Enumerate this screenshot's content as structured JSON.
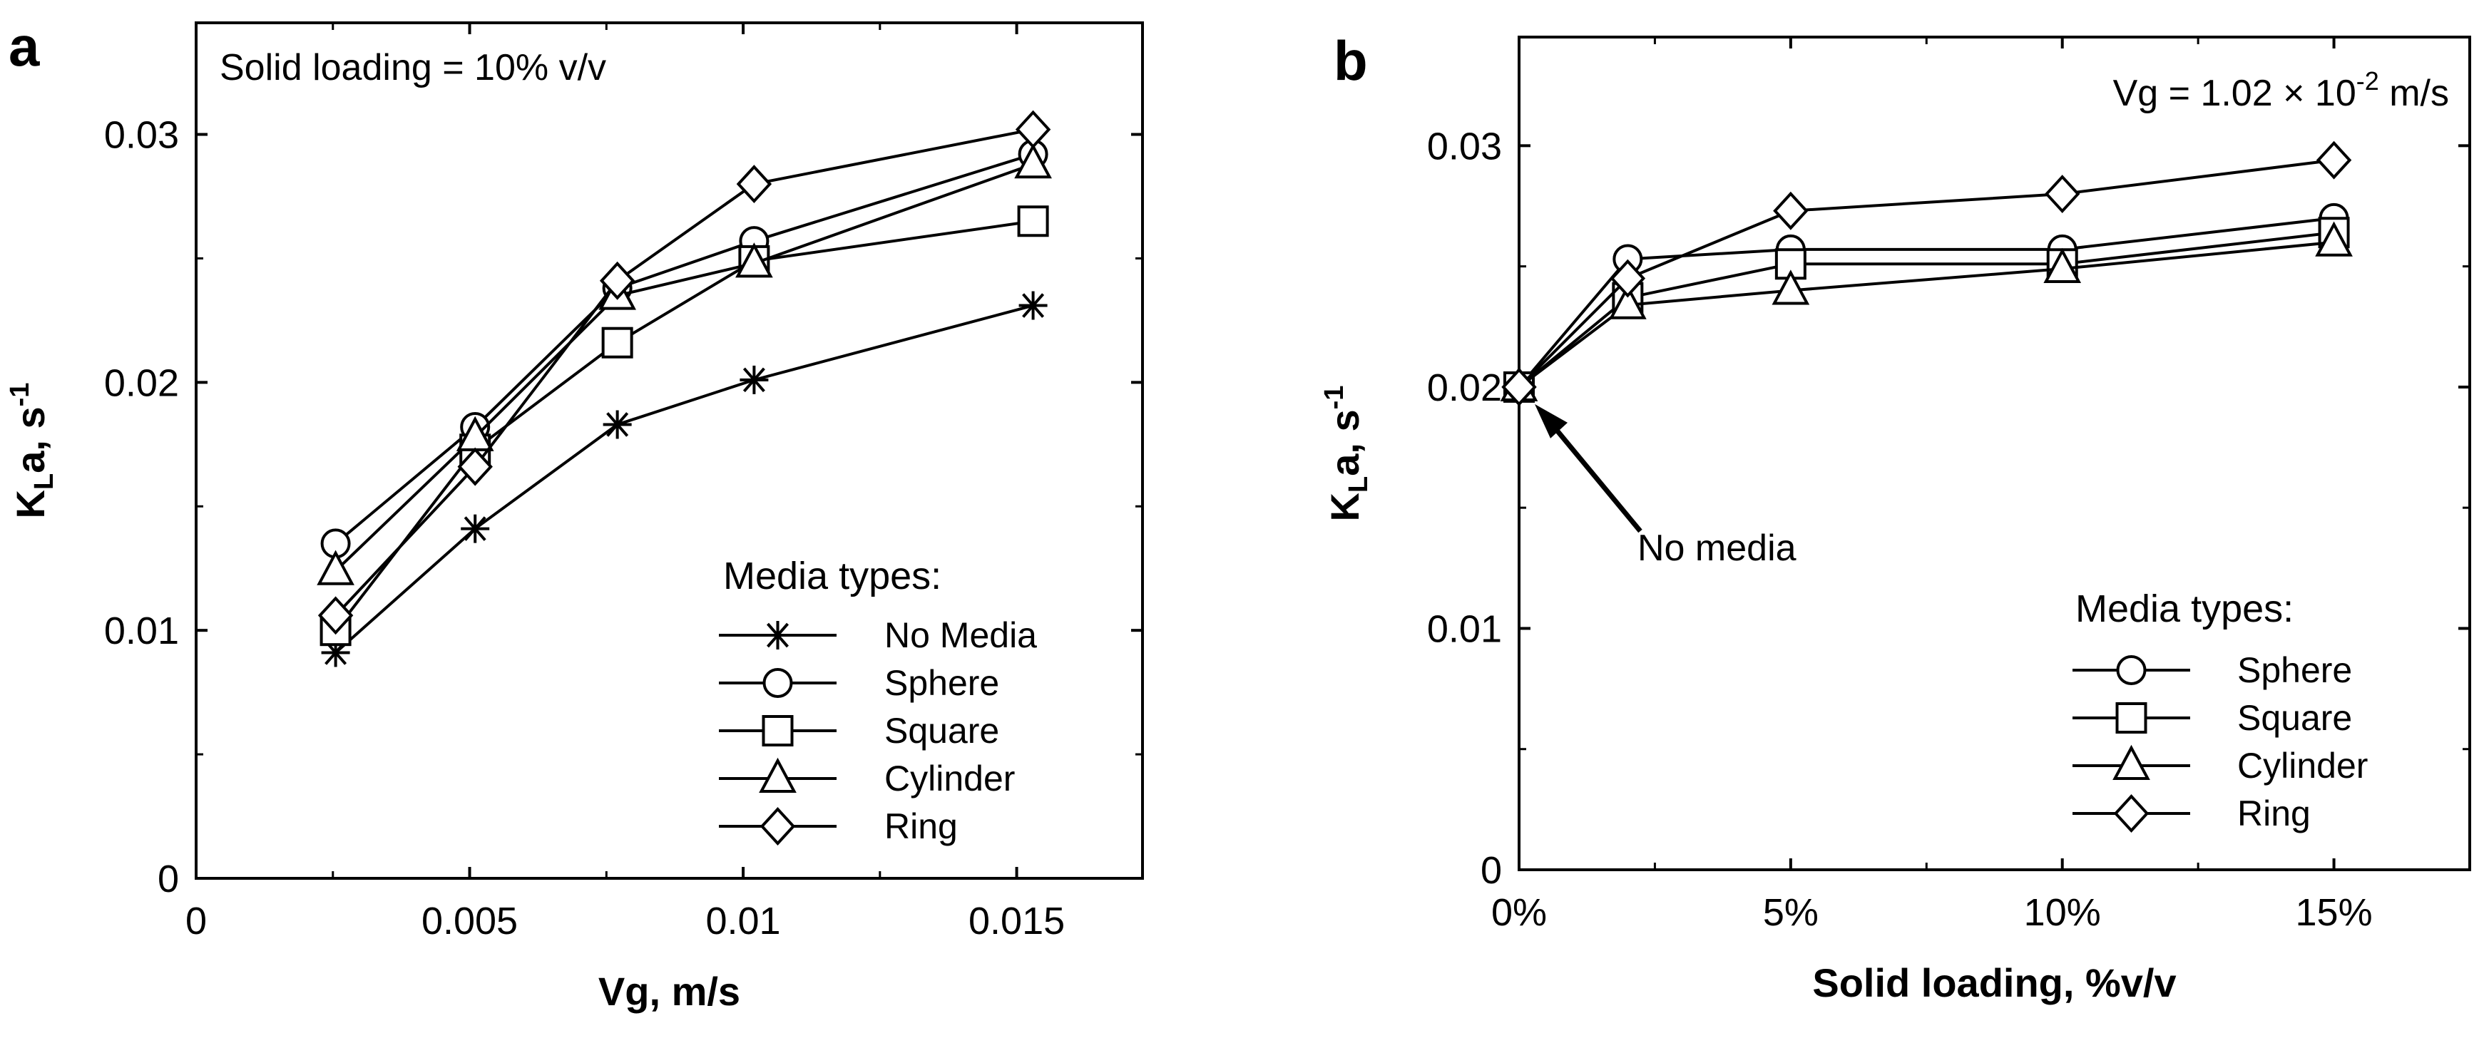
{
  "chart_data": [
    {
      "panel_label": "a",
      "type": "line",
      "annotation": "Solid loading = 10% v/v",
      "xlabel": "Vg, m/s",
      "ylabel_main": "K",
      "ylabel_sub": "L",
      "ylabel_rest": "a, s",
      "ylabel_sup": "-1",
      "xlim": [
        0,
        0.0173
      ],
      "ylim": [
        0,
        0.0345
      ],
      "x_ticks": [
        {
          "value": 0,
          "label": "0"
        },
        {
          "value": 0.005,
          "label": "0.005"
        },
        {
          "value": 0.01,
          "label": "0.01"
        },
        {
          "value": 0.015,
          "label": "0.015"
        }
      ],
      "y_ticks": [
        {
          "value": 0,
          "label": "0"
        },
        {
          "value": 0.01,
          "label": "0.01"
        },
        {
          "value": 0.02,
          "label": "0.02"
        },
        {
          "value": 0.03,
          "label": "0.03"
        }
      ],
      "legend_title": "Media types:",
      "series": [
        {
          "name": "No Media",
          "marker": "star",
          "x": [
            0.00255,
            0.0051,
            0.0077,
            0.0102,
            0.0153
          ],
          "y": [
            0.0091,
            0.0141,
            0.0183,
            0.0201,
            0.0231
          ]
        },
        {
          "name": "Sphere",
          "marker": "circle",
          "x": [
            0.00255,
            0.0051,
            0.0077,
            0.0102,
            0.0153
          ],
          "y": [
            0.0135,
            0.0182,
            0.0238,
            0.0257,
            0.0292
          ]
        },
        {
          "name": "Square",
          "marker": "square",
          "x": [
            0.00255,
            0.0051,
            0.0077,
            0.0102,
            0.0153
          ],
          "y": [
            0.01,
            0.0173,
            0.0216,
            0.0249,
            0.0265
          ]
        },
        {
          "name": "Cylinder",
          "marker": "triangle",
          "x": [
            0.00255,
            0.0051,
            0.0077,
            0.0102,
            0.0153
          ],
          "y": [
            0.0124,
            0.0178,
            0.0235,
            0.0248,
            0.0288
          ]
        },
        {
          "name": "Ring",
          "marker": "diamond",
          "x": [
            0.00255,
            0.0051,
            0.0077,
            0.0102,
            0.0153
          ],
          "y": [
            0.0106,
            0.0166,
            0.0241,
            0.028,
            0.0302
          ]
        }
      ]
    },
    {
      "panel_label": "b",
      "type": "line",
      "annotation_main": "Vg = 1.02 × 10",
      "annotation_sup": "-2",
      "annotation_rest": " m/s",
      "arrow_note": "No media",
      "xlabel": "Solid loading, %v/v",
      "ylabel_main": "K",
      "ylabel_sub": "L",
      "ylabel_rest": "a, s",
      "ylabel_sup": "-1",
      "xlim": [
        0,
        17.5
      ],
      "ylim": [
        0,
        0.0345
      ],
      "x_ticks": [
        {
          "value": 0,
          "label": "0%"
        },
        {
          "value": 5,
          "label": "5%"
        },
        {
          "value": 10,
          "label": "10%"
        },
        {
          "value": 15,
          "label": "15%"
        }
      ],
      "y_ticks": [
        {
          "value": 0,
          "label": "0"
        },
        {
          "value": 0.01,
          "label": "0.01"
        },
        {
          "value": 0.02,
          "label": "0.02"
        },
        {
          "value": 0.03,
          "label": "0.03"
        }
      ],
      "legend_title": "Media types:",
      "series": [
        {
          "name": "Sphere",
          "marker": "circle",
          "x": [
            0,
            2,
            5,
            10,
            15
          ],
          "y": [
            0.02,
            0.0253,
            0.0257,
            0.0257,
            0.027
          ]
        },
        {
          "name": "Square",
          "marker": "square",
          "x": [
            0,
            2,
            5,
            10,
            15
          ],
          "y": [
            0.02,
            0.0237,
            0.0251,
            0.0251,
            0.0264
          ]
        },
        {
          "name": "Cylinder",
          "marker": "triangle",
          "x": [
            0,
            2,
            5,
            10,
            15
          ],
          "y": [
            0.02,
            0.0234,
            0.024,
            0.0249,
            0.026
          ]
        },
        {
          "name": "Ring",
          "marker": "diamond",
          "x": [
            0,
            2,
            5,
            10,
            15
          ],
          "y": [
            0.02,
            0.0245,
            0.0273,
            0.028,
            0.0294
          ]
        }
      ]
    }
  ]
}
